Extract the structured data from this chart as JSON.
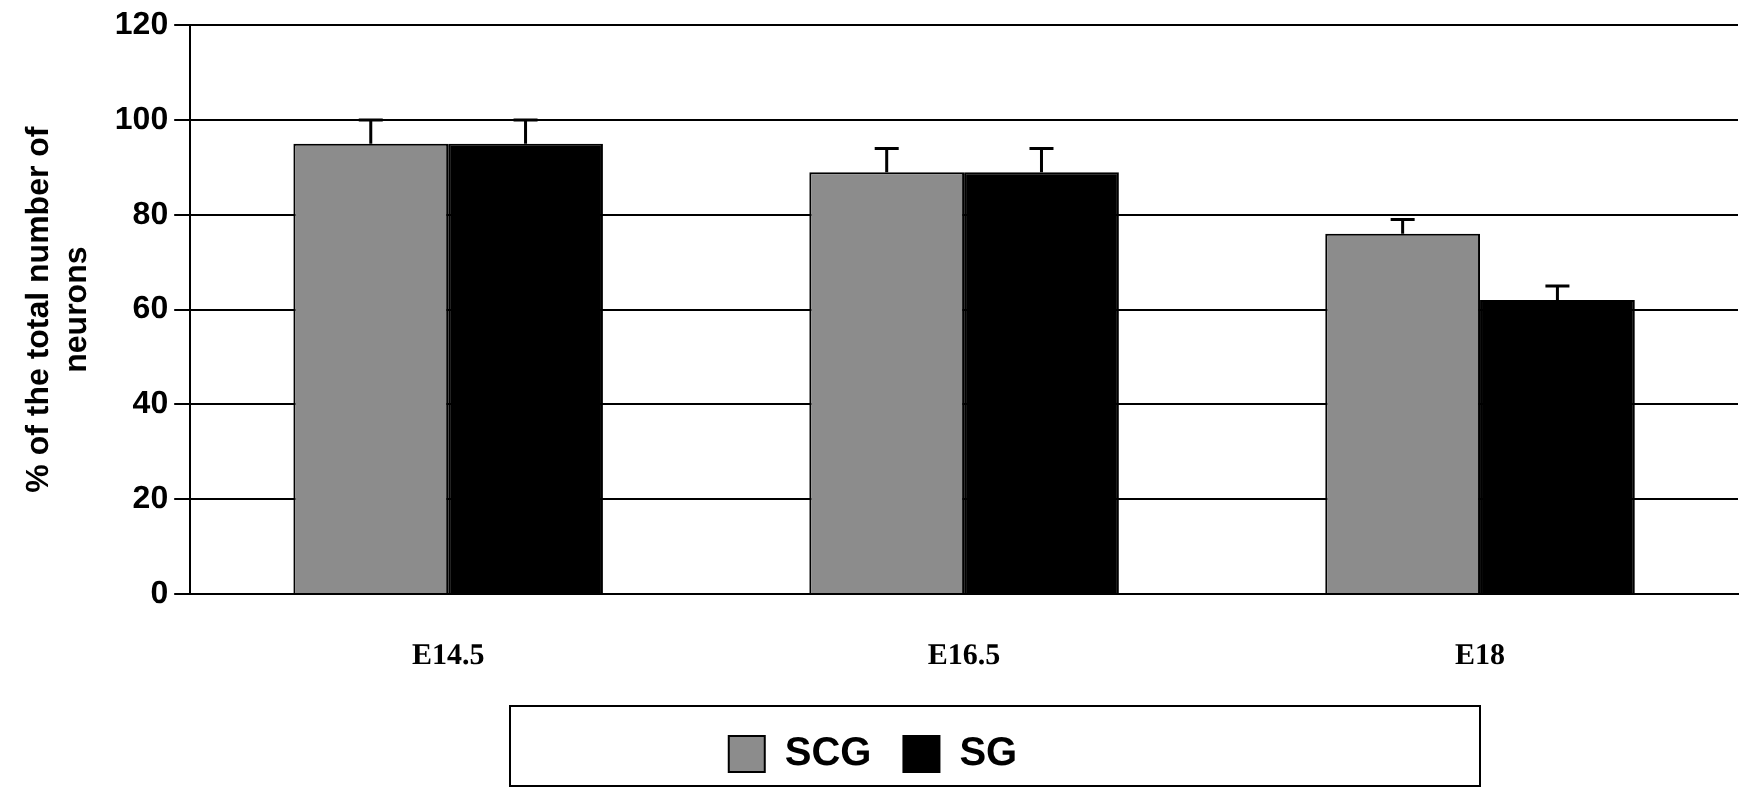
{
  "chart_data": {
    "type": "bar",
    "ylabel": "% of the total number of neurons",
    "categories": [
      "E14.5",
      "E16.5",
      "E18"
    ],
    "series": [
      {
        "name": "SCG",
        "color": "#8c8c8c",
        "values": [
          95,
          89,
          76
        ],
        "errors": [
          5,
          5,
          3
        ]
      },
      {
        "name": "SG",
        "color": "#000000",
        "values": [
          95,
          89,
          62
        ],
        "errors": [
          5,
          5,
          3
        ]
      }
    ],
    "ylim": [
      0,
      120
    ],
    "yticks": [
      0,
      20,
      40,
      60,
      80,
      100,
      120
    ],
    "grid": "y",
    "legend": "bottom"
  }
}
